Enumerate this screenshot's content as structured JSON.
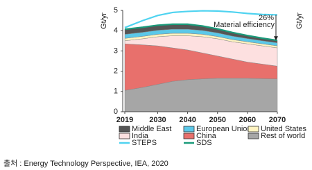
{
  "chart_data": {
    "type": "stacked_area",
    "ylabel": "Gt/yr",
    "ylabel_right": "Gt/yr",
    "x": [
      2019,
      2025,
      2030,
      2035,
      2040,
      2045,
      2050,
      2055,
      2060,
      2065,
      2070
    ],
    "xlim": [
      2019,
      2070
    ],
    "xticks": [
      2019,
      2030,
      2040,
      2050,
      2060,
      2070
    ],
    "ylim": [
      0,
      5
    ],
    "yticks": [
      0,
      1,
      2,
      3,
      4,
      5
    ],
    "grid": false,
    "series": [
      {
        "name": "Middle East",
        "kind": "area",
        "color": "#555555",
        "values": [
          0.25,
          0.25,
          0.25,
          0.25,
          0.25,
          0.22,
          0.2,
          0.18,
          0.15,
          0.13,
          0.12
        ]
      },
      {
        "name": "European Union",
        "kind": "area",
        "color": "#5bc8e8",
        "values": [
          0.2,
          0.2,
          0.2,
          0.2,
          0.2,
          0.19,
          0.18,
          0.17,
          0.16,
          0.15,
          0.15
        ]
      },
      {
        "name": "United States",
        "kind": "area",
        "color": "#fff3c0",
        "values": [
          0.12,
          0.12,
          0.12,
          0.12,
          0.12,
          0.12,
          0.11,
          0.11,
          0.1,
          0.1,
          0.1
        ]
      },
      {
        "name": "India",
        "kind": "area",
        "color": "#fde0e0",
        "values": [
          0.15,
          0.3,
          0.45,
          0.6,
          0.7,
          0.8,
          0.85,
          0.85,
          0.9,
          0.9,
          0.9
        ]
      },
      {
        "name": "China",
        "kind": "area",
        "color": "#e8706c",
        "values": [
          2.3,
          2.1,
          1.9,
          1.65,
          1.47,
          1.28,
          1.1,
          0.95,
          0.8,
          0.72,
          0.63
        ]
      },
      {
        "name": "Rest of world",
        "kind": "area",
        "color": "#a6a6a6",
        "values": [
          1.05,
          1.2,
          1.35,
          1.5,
          1.58,
          1.62,
          1.65,
          1.65,
          1.65,
          1.63,
          1.62
        ]
      },
      {
        "name": "STEPS",
        "kind": "line",
        "color": "#4fd3f0",
        "values": [
          4.15,
          4.5,
          4.75,
          4.9,
          4.95,
          4.98,
          4.97,
          4.92,
          4.85,
          4.8,
          4.78
        ]
      },
      {
        "name": "SDS",
        "kind": "line",
        "color": "#1a9a7a",
        "values": [
          4.07,
          4.17,
          4.27,
          4.32,
          4.32,
          4.23,
          4.09,
          3.91,
          3.76,
          3.63,
          3.52
        ]
      }
    ],
    "annotations": [
      {
        "text": "26%"
      },
      {
        "text": "Material efficiency"
      }
    ],
    "source": "출처 : Energy Technology Perspective, IEA, 2020"
  }
}
